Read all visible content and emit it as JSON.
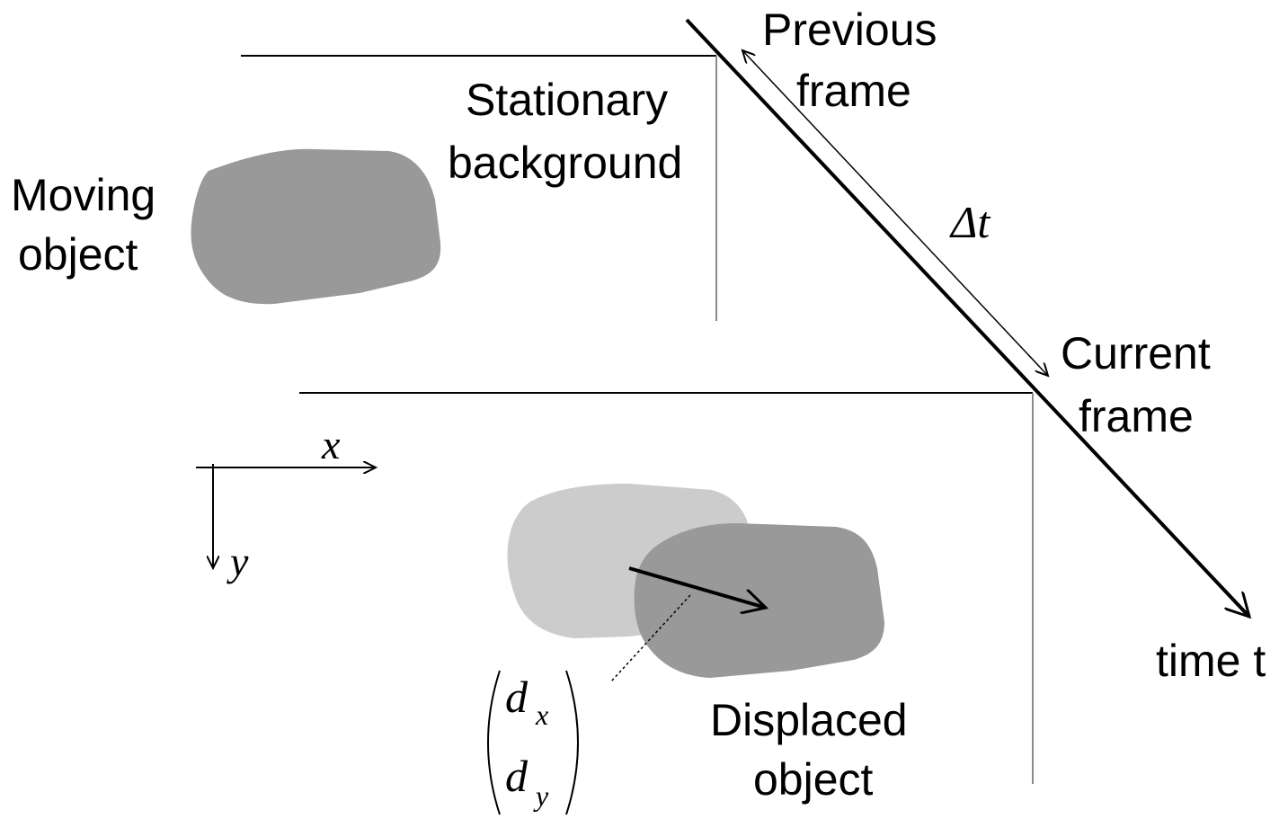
{
  "labels": {
    "moving_object_line1": "Moving",
    "moving_object_line2": "object",
    "stationary_line1": "Stationary",
    "stationary_line2": "background",
    "previous_line1": "Previous",
    "previous_line2": "frame",
    "delta_t": "Δt",
    "current_line1": "Current",
    "current_line2": "frame",
    "time_axis": "time t",
    "displaced_line1": "Displaced",
    "displaced_line2": "object",
    "axis_x": "x",
    "axis_y": "y",
    "vector_d": "d",
    "vector_x_sub": "x",
    "vector_y_sub": "y"
  },
  "colors": {
    "object_dark": "#999999",
    "object_light": "#cccccc",
    "frame_edge": "#8a8a8a",
    "line": "#000000"
  }
}
